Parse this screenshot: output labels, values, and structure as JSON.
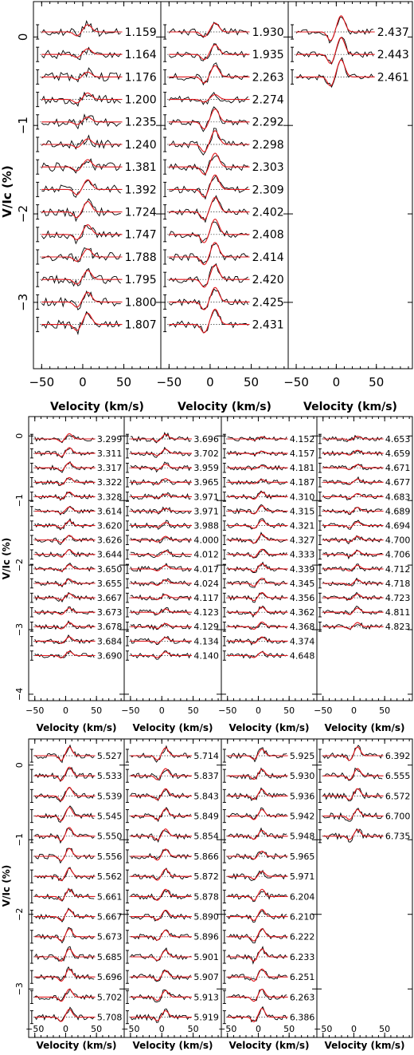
{
  "colors": {
    "observed": "#000000",
    "model": "#e0161b",
    "axes": "#000000"
  },
  "chart_data": [
    {
      "type": "line",
      "ylabel": "V/Ic (%)",
      "xlabel": "Velocity (km/s)",
      "xlim": [
        -60,
        95
      ],
      "ylim": [
        -3.75,
        0.4
      ],
      "xticks": [
        -50,
        0,
        50
      ],
      "yticks": [
        0,
        -1,
        -2,
        -3
      ],
      "columns": [
        {
          "phases": [
            "1.159",
            "1.164",
            "1.176",
            "1.200",
            "1.235",
            "1.240",
            "1.381",
            "1.392",
            "1.724",
            "1.747",
            "1.788",
            "1.795",
            "1.800",
            "1.807"
          ],
          "amplitude": [
            0.09,
            0.07,
            0.06,
            0.08,
            0.06,
            0.07,
            0.09,
            0.12,
            0.13,
            0.12,
            0.1,
            0.11,
            0.12,
            0.14
          ],
          "noise": 0.09
        },
        {
          "phases": [
            "1.930",
            "1.935",
            "2.263",
            "2.274",
            "2.292",
            "2.298",
            "2.303",
            "2.309",
            "2.402",
            "2.408",
            "2.414",
            "2.420",
            "2.425",
            "2.431"
          ],
          "amplitude": [
            0.11,
            0.12,
            0.14,
            0.06,
            0.16,
            0.17,
            0.17,
            0.18,
            0.18,
            0.19,
            0.18,
            0.18,
            0.18,
            0.19
          ],
          "noise": 0.07
        },
        {
          "phases": [
            "2.437",
            "2.443",
            "2.461"
          ],
          "amplitude": [
            0.2,
            0.21,
            0.21
          ],
          "noise": 0.06
        }
      ]
    },
    {
      "type": "line",
      "ylabel": "V/Ic (%)",
      "xlabel": "Velocity (km/s)",
      "xlim": [
        -60,
        95
      ],
      "ylim": [
        -4.1,
        0.3
      ],
      "xticks": [
        -50,
        0,
        50
      ],
      "yticks": [
        0,
        -1,
        -2,
        -3,
        -4
      ],
      "columns": [
        {
          "phases": [
            "3.299",
            "3.311",
            "3.317",
            "3.322",
            "3.328",
            "3.614",
            "3.620",
            "3.626",
            "3.644",
            "3.650",
            "3.655",
            "3.667",
            "3.673",
            "3.678",
            "3.684",
            "3.690"
          ],
          "amplitude": [
            0.1,
            0.11,
            0.1,
            0.09,
            0.09,
            0.08,
            0.09,
            0.09,
            0.09,
            0.08,
            0.08,
            0.08,
            0.08,
            0.08,
            0.08,
            0.08
          ],
          "noise": 0.07
        },
        {
          "phases": [
            "3.696",
            "3.702",
            "3.959",
            "3.965",
            "3.971",
            "3.971",
            "3.988",
            "4.000",
            "4.012",
            "4.017",
            "4.024",
            "4.117",
            "4.123",
            "4.129",
            "4.134",
            "4.140"
          ],
          "amplitude": [
            0.09,
            0.08,
            0.07,
            0.07,
            0.05,
            0.05,
            0.06,
            0.07,
            0.07,
            0.07,
            0.07,
            0.06,
            0.06,
            0.06,
            0.07,
            0.07
          ],
          "noise": 0.08
        },
        {
          "phases": [
            "4.152",
            "4.157",
            "4.181",
            "4.187",
            "4.310",
            "4.315",
            "4.321",
            "4.327",
            "4.333",
            "4.339",
            "4.345",
            "4.356",
            "4.362",
            "4.368",
            "4.374",
            "4.648"
          ],
          "amplitude": [
            0.04,
            0.04,
            0.04,
            0.05,
            0.09,
            0.1,
            0.1,
            0.11,
            0.1,
            0.1,
            0.1,
            0.1,
            0.1,
            0.09,
            0.08,
            0.07
          ],
          "noise": 0.07
        },
        {
          "phases": [
            "4.653",
            "4.659",
            "4.671",
            "4.677",
            "4.683",
            "4.689",
            "4.694",
            "4.700",
            "4.706",
            "4.712",
            "4.718",
            "4.723",
            "4.811",
            "4.823"
          ],
          "amplitude": [
            0.05,
            0.06,
            0.06,
            0.06,
            0.06,
            0.07,
            0.07,
            0.07,
            0.07,
            0.07,
            0.07,
            0.07,
            0.08,
            0.08
          ],
          "noise": 0.07
        }
      ]
    },
    {
      "type": "line",
      "ylabel": "V/Ic (%)",
      "xlabel": "Velocity (km/s)",
      "xlim": [
        -60,
        95
      ],
      "ylim": [
        -3.65,
        0.35
      ],
      "xticks": [
        -50,
        0,
        50
      ],
      "yticks": [
        0,
        -1,
        -2,
        -3
      ],
      "columns": [
        {
          "phases": [
            "5.527",
            "5.533",
            "5.539",
            "5.545",
            "5.550",
            "5.556",
            "5.562",
            "5.661",
            "5.667",
            "5.673",
            "5.685",
            "5.696",
            "5.702",
            "5.708"
          ],
          "amplitude": [
            0.12,
            0.12,
            0.12,
            0.12,
            0.12,
            0.11,
            0.11,
            0.1,
            0.1,
            0.11,
            0.11,
            0.11,
            0.11,
            0.11
          ],
          "noise": 0.06
        },
        {
          "phases": [
            "5.714",
            "5.837",
            "5.843",
            "5.849",
            "5.854",
            "5.866",
            "5.872",
            "5.878",
            "5.890",
            "5.896",
            "5.901",
            "5.907",
            "5.913",
            "5.919"
          ],
          "amplitude": [
            0.11,
            0.1,
            0.1,
            0.1,
            0.1,
            0.1,
            0.1,
            0.1,
            0.09,
            0.09,
            0.09,
            0.09,
            0.09,
            0.09
          ],
          "noise": 0.06
        },
        {
          "phases": [
            "5.925",
            "5.930",
            "5.936",
            "5.942",
            "5.948",
            "5.965",
            "5.971",
            "6.204",
            "6.210",
            "6.222",
            "6.233",
            "6.251",
            "6.263",
            "6.386"
          ],
          "amplitude": [
            0.09,
            0.09,
            0.09,
            0.09,
            0.08,
            0.07,
            0.07,
            0.1,
            0.1,
            0.11,
            0.11,
            0.11,
            0.11,
            0.12
          ],
          "noise": 0.06
        },
        {
          "phases": [
            "6.392",
            "6.555",
            "6.572",
            "6.700",
            "6.735"
          ],
          "amplitude": [
            0.12,
            0.1,
            0.1,
            0.09,
            0.09
          ],
          "noise": 0.07
        }
      ]
    }
  ]
}
